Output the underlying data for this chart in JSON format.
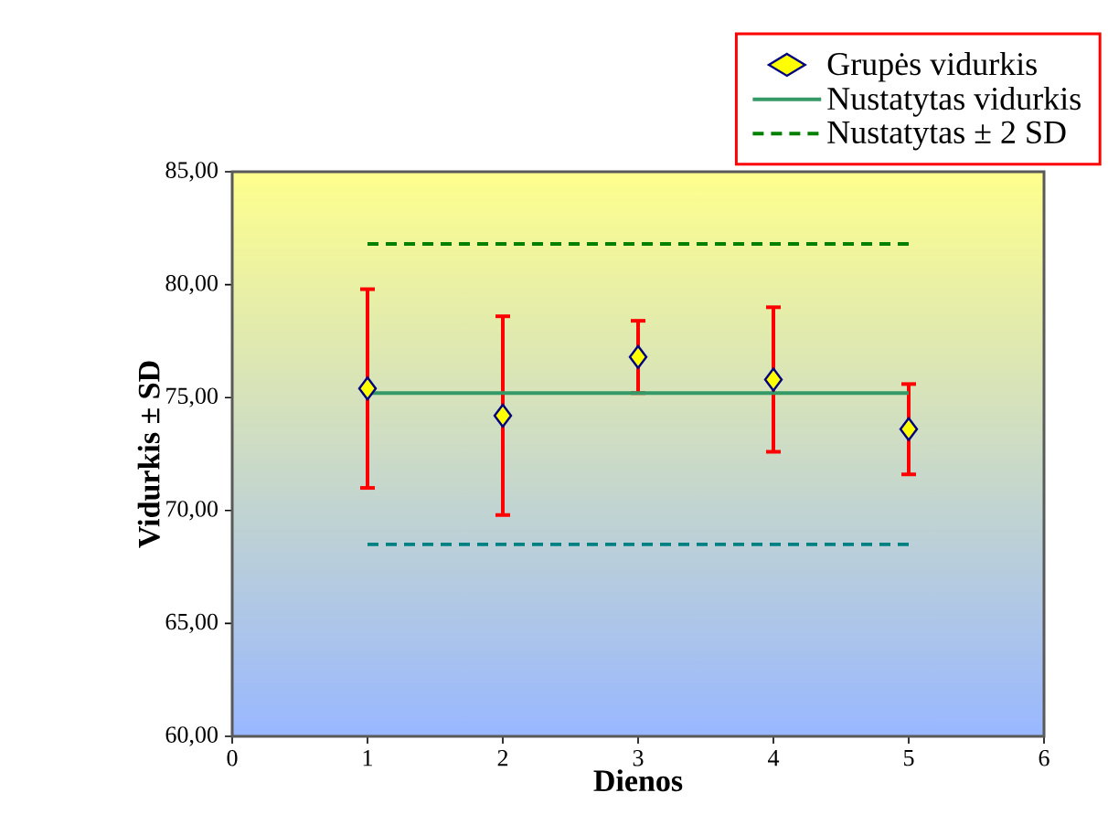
{
  "chart_data": {
    "type": "scatter",
    "xlabel": "Dienos",
    "ylabel": "Vidurkis ± SD",
    "xlim": [
      0,
      6
    ],
    "xticks": [
      0,
      1,
      2,
      3,
      4,
      5,
      6
    ],
    "ylim": [
      60,
      85
    ],
    "yticks": [
      {
        "value": 60,
        "label": "60,00"
      },
      {
        "value": 65,
        "label": "65,00"
      },
      {
        "value": 70,
        "label": "70,00"
      },
      {
        "value": 75,
        "label": "75,00"
      },
      {
        "value": 80,
        "label": "80,00"
      },
      {
        "value": 85,
        "label": "85,00"
      }
    ],
    "marker": "diamond",
    "legend": "top right",
    "grid": false,
    "series": [
      {
        "name": "Grupės vidurkis",
        "color": "#ffff00",
        "x": [
          1,
          2,
          3,
          4,
          5
        ],
        "values": [
          75.4,
          74.2,
          76.8,
          75.8,
          73.6
        ],
        "errors": [
          4.4,
          4.4,
          1.6,
          3.2,
          2.0
        ]
      },
      {
        "name": "Nustatytas vidurkis",
        "type": "line",
        "marker": "none",
        "color": "#339966",
        "line_style": "solid",
        "x": [
          1,
          5
        ],
        "values": [
          75.2,
          75.2
        ]
      },
      {
        "name": "Nustatytas ± 2 SD",
        "type": "line",
        "marker": "none",
        "color": "#008000",
        "line_style": "dashed",
        "x": [
          1,
          5
        ],
        "values": [
          81.8,
          81.8
        ]
      },
      {
        "type": "line",
        "marker": "none",
        "color": "#008080",
        "line_style": "dashed",
        "x": [
          1,
          5
        ],
        "values": [
          68.5,
          68.5
        ]
      }
    ]
  }
}
